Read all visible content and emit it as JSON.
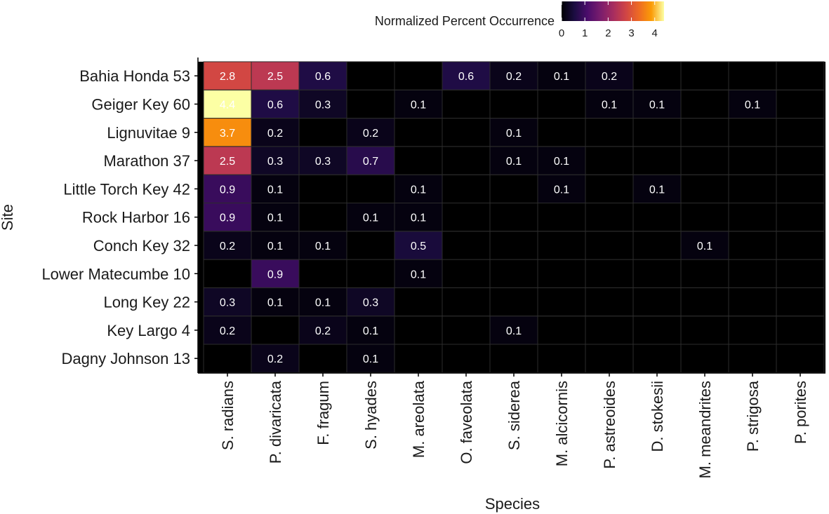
{
  "chart_data": {
    "type": "heatmap",
    "title": "",
    "xlabel": "Species",
    "ylabel": "Site",
    "x_categories": [
      "S. radians",
      "P. divaricata",
      "F. fragum",
      "S. hyades",
      "M. areolata",
      "O. faveolata",
      "S. siderea",
      "M. alcicornis",
      "P. astreoides",
      "D. stokesii",
      "M. meandrites",
      "P. strigosa",
      "P. porites"
    ],
    "y_categories": [
      "Bahia Honda 53",
      "Geiger Key 60",
      "Lignuvitae 9",
      "Marathon 37",
      "Little Torch Key 42",
      "Rock Harbor 16",
      "Conch Key 32",
      "Lower Matecumbe 10",
      "Long Key 22",
      "Key Largo 4",
      "Dagny Johnson 13"
    ],
    "values": [
      [
        2.8,
        2.5,
        0.6,
        null,
        null,
        0.6,
        0.2,
        0.1,
        0.2,
        null,
        null,
        null,
        null
      ],
      [
        4.4,
        0.6,
        0.3,
        null,
        0.1,
        null,
        null,
        null,
        0.1,
        0.1,
        null,
        0.1,
        null
      ],
      [
        3.7,
        0.2,
        null,
        0.2,
        null,
        null,
        0.1,
        null,
        null,
        null,
        null,
        null,
        null
      ],
      [
        2.5,
        0.3,
        0.3,
        0.7,
        null,
        null,
        0.1,
        0.1,
        null,
        null,
        null,
        null,
        null
      ],
      [
        0.9,
        0.1,
        null,
        null,
        0.1,
        null,
        null,
        0.1,
        null,
        0.1,
        null,
        null,
        null
      ],
      [
        0.9,
        0.1,
        null,
        0.1,
        0.1,
        null,
        null,
        null,
        null,
        null,
        null,
        null,
        null
      ],
      [
        0.2,
        0.1,
        0.1,
        null,
        0.5,
        null,
        null,
        null,
        null,
        null,
        0.1,
        null,
        null
      ],
      [
        null,
        0.9,
        null,
        null,
        0.1,
        null,
        null,
        null,
        null,
        null,
        null,
        null,
        null
      ],
      [
        0.3,
        0.1,
        0.1,
        0.3,
        null,
        null,
        null,
        null,
        null,
        null,
        null,
        null,
        null
      ],
      [
        0.2,
        null,
        0.2,
        0.1,
        null,
        null,
        0.1,
        null,
        null,
        null,
        null,
        null,
        null
      ],
      [
        null,
        0.2,
        null,
        0.1,
        null,
        null,
        null,
        null,
        null,
        null,
        null,
        null,
        null
      ]
    ],
    "colorscale": "inferno",
    "color_range": [
      0,
      4.4
    ],
    "legend": {
      "title": "Normalized Percent Occurrence",
      "ticks": [
        0,
        1,
        2,
        3,
        4
      ],
      "position": "top-right"
    }
  }
}
